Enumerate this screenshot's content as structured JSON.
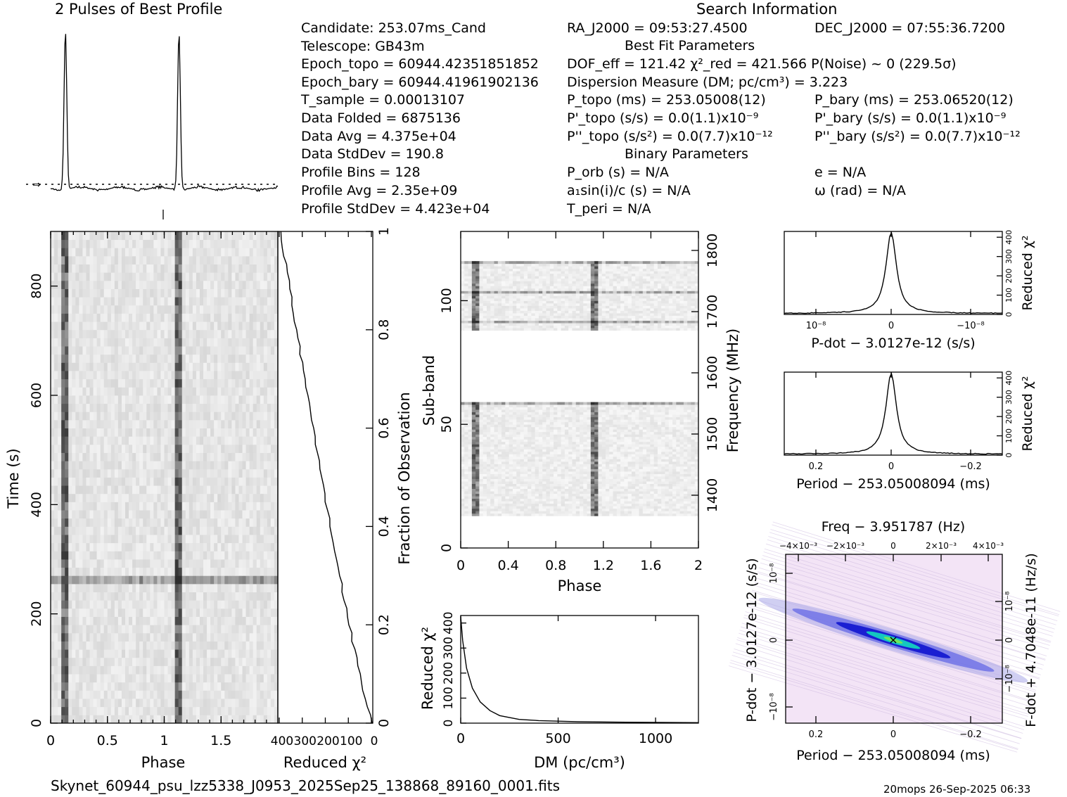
{
  "titles": {
    "profile": "2 Pulses of Best Profile",
    "search": "Search Information",
    "best_fit": "Best Fit Parameters",
    "binary": "Binary Parameters"
  },
  "info_left": [
    "Candidate:  253.07ms_Cand",
    "Telescope:  GB43m",
    "Epoch_topo = 60944.42351851852",
    "Epoch_bary = 60944.41961902136",
    "T_sample      =  0.00013107",
    "Data Folded    =  6875136",
    "Data Avg       =  4.375e+04",
    "Data StdDev    =  190.8",
    "Profile Bins    =  128",
    "Profile Avg     =  2.35e+09",
    "Profile StdDev =  4.423e+04"
  ],
  "info_mid": [
    "RA_J2000 = 09:53:27.4500",
    "DOF_eff = 121.42  χ²_red = 421.566   P(Noise) ~ 0    (229.5σ)",
    "Dispersion Measure (DM; pc/cm³) = 3.223",
    "P_topo (ms) =  253.05008(12)",
    "P'_topo (s/s) = 0.0(1.1)x10⁻⁹",
    "P''_topo (s/s²) = 0.0(7.7)x10⁻¹²",
    "P_orb (s) = N/A",
    "a₁sin(i)/c (s) = N/A",
    "T_peri = N/A"
  ],
  "info_right": [
    "DEC_J2000 = 07:55:36.7200",
    "P_bary (ms) =  253.06520(12)",
    "P'_bary (s/s) = 0.0(1.1)x10⁻⁹",
    "P''_bary (s/s²) = 0.0(7.7)x10⁻¹²",
    "e = N/A",
    "ω (rad) = N/A"
  ],
  "footer": {
    "filename": "Skynet_60944_psu_lzz5338_J0953_2025Sep25_138868_89160_0001.fits",
    "stamp": "20mops 26-Sep-2025 06:33"
  },
  "chart_data": [
    {
      "type": "line",
      "title": "2 Pulses of Best Profile",
      "x_range": [
        0,
        2
      ],
      "pulse_phases": [
        0.13,
        1.13
      ],
      "note_baseline": "dotted"
    },
    {
      "type": "heatmap",
      "name": "time-phase",
      "xlabel": "Phase",
      "ylabel": "Time (s)",
      "xticks": [
        "0",
        "0.5",
        "1",
        "1.5"
      ],
      "yticks": [
        "0",
        "200",
        "400",
        "600",
        "800"
      ],
      "xlim": [
        0,
        2
      ],
      "ylim": [
        0,
        900
      ],
      "pulse_phases": [
        0.13,
        1.13
      ],
      "bright_time_s": 262
    },
    {
      "type": "line",
      "name": "reduced-chi2-vs-time",
      "xlabel": "Reduced χ²",
      "xticks": [
        "400",
        "300",
        "200",
        "100",
        "0"
      ],
      "y2label": "Fraction of Observation",
      "y2ticks": [
        "0",
        "0.2",
        "0.4",
        "0.6",
        "0.8",
        "1"
      ]
    },
    {
      "type": "heatmap",
      "name": "subband-phase",
      "xlabel": "Phase",
      "ylabel": "Sub-band",
      "y2label": "Frequency (MHz)",
      "xticks": [
        "0",
        "0.4",
        "0.8",
        "1.2",
        "1.6",
        "2"
      ],
      "yticks": [
        "0",
        "50",
        "100"
      ],
      "y2ticks": [
        "1400",
        "1500",
        "1600",
        "1700",
        "1800"
      ],
      "xlim": [
        0,
        2
      ],
      "ylim": [
        0,
        128
      ],
      "active_bands": [
        [
          13,
          59
        ],
        [
          88,
          116
        ]
      ],
      "pulse_phases": [
        0.13,
        1.13
      ]
    },
    {
      "type": "line",
      "name": "dm-curve",
      "xlabel": "DM (pc/cm³)",
      "ylabel": "Reduced χ²",
      "xticks": [
        "0",
        "500",
        "1000"
      ],
      "yticks": [
        "0",
        "100",
        "200",
        "300",
        "400"
      ],
      "xlim": [
        0,
        1220
      ],
      "ylim": [
        0,
        430
      ],
      "x": [
        0,
        10,
        30,
        60,
        100,
        150,
        200,
        300,
        400,
        600,
        800,
        1000,
        1220
      ],
      "y": [
        425,
        330,
        220,
        140,
        85,
        50,
        30,
        15,
        10,
        6,
        4,
        3,
        2
      ]
    },
    {
      "type": "line",
      "name": "pdot-curve",
      "xlabel": "P-dot − 3.0127e-12 (s/s)",
      "ylabel": "Reduced χ²",
      "xticks": [
        "10⁻⁸",
        "0",
        "−10⁻⁸"
      ],
      "yticks": [
        "0",
        "100",
        "200",
        "300",
        "400"
      ],
      "ylim": [
        0,
        430
      ],
      "peak": 420
    },
    {
      "type": "line",
      "name": "period-curve",
      "xlabel": "Period − 253.05008094 (ms)",
      "ylabel": "Reduced χ²",
      "xticks": [
        "0.2",
        "0",
        "−0.2"
      ],
      "yticks": [
        "0",
        "100",
        "200",
        "300",
        "400"
      ],
      "ylim": [
        0,
        430
      ],
      "peak": 420
    },
    {
      "type": "heatmap",
      "name": "period-pdot-plane",
      "title": "Freq − 3.951787 (Hz)",
      "xlabel": "Period − 253.05008094 (ms)",
      "ylabel": "P-dot − 3.0127e-12 (s/s)",
      "y2label": "F-dot + 4.7048e-11 (Hz/s)",
      "xticks": [
        "0.2",
        "0",
        "−0.2"
      ],
      "x2ticks": [
        "−4×10⁻³",
        "−2×10⁻³",
        "0",
        "2×10⁻³",
        "4×10⁻³"
      ],
      "yticks": [
        "10⁻⁸",
        "0",
        "−10⁻⁸"
      ],
      "y2ticks": [
        "10⁻⁸",
        "0",
        "−10⁻⁸"
      ]
    }
  ]
}
